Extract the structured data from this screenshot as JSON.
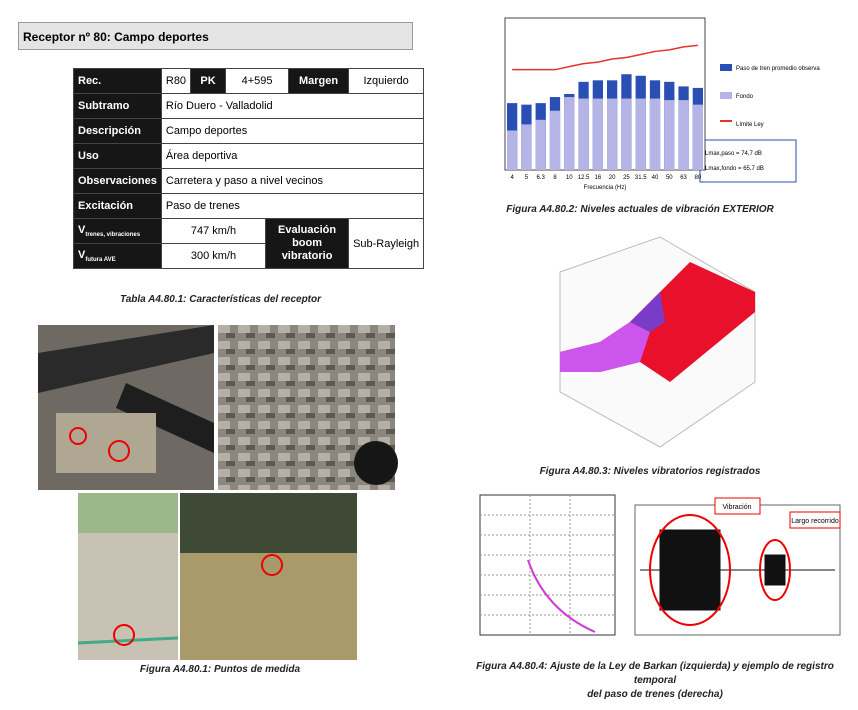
{
  "header": {
    "title": "Receptor nº 80: Campo deportes"
  },
  "table": {
    "row0": [
      "Rec.",
      "R80",
      "PK",
      "4+595",
      "Margen",
      "Izquierdo"
    ],
    "rows": [
      [
        "Subtramo",
        "Río Duero - Valladolid"
      ],
      [
        "Descripción",
        "Campo deportes"
      ],
      [
        "Uso",
        "Área deportiva"
      ],
      [
        "Observaciones",
        "Carretera y paso a nivel vecinos"
      ],
      [
        "Excitación",
        "Paso de trenes"
      ]
    ],
    "speed1": {
      "label": "V",
      "sub": "trenes, vibraciones",
      "value": "747 km/h"
    },
    "speed2": {
      "label": "V",
      "sub": "futura AVE",
      "value": "300 km/h"
    },
    "evaluation": {
      "label": "Evaluación boom vibratorio",
      "value": "Sub-Rayleigh"
    },
    "caption": "Tabla A4.80.1: Características del receptor"
  },
  "photos": {
    "caption": "Figura A4.80.1: Puntos de medida"
  },
  "figure2": {
    "caption": "Figura A4.80.2: Niveles actuales de vibración EXTERIOR",
    "chart_data": {
      "type": "bar",
      "x_label": "Frecuencia (Hz)",
      "categories": [
        "4",
        "5",
        "6.3",
        "8",
        "10",
        "12.5",
        "16",
        "20",
        "25",
        "31.5",
        "40",
        "50",
        "63",
        "80"
      ],
      "ylim": [
        0,
        10
      ],
      "series": [
        {
          "name": "Paso de tren promedio observado",
          "color": "#2a4fb4",
          "values": [
            4.4,
            4.3,
            4.4,
            4.8,
            5.0,
            5.8,
            5.9,
            5.9,
            6.3,
            6.2,
            5.9,
            5.8,
            5.5,
            5.4
          ]
        },
        {
          "name": "Fondo",
          "color": "#b4b4e6",
          "values": [
            2.6,
            3.0,
            3.3,
            3.9,
            4.8,
            4.7,
            4.7,
            4.7,
            4.7,
            4.7,
            4.7,
            4.6,
            4.6,
            4.3
          ]
        },
        {
          "name": "Límite Ley",
          "color": "#e8322a",
          "type": "line",
          "values": [
            6.6,
            6.6,
            6.6,
            6.6,
            6.8,
            7.0,
            7.1,
            7.3,
            7.4,
            7.6,
            7.8,
            7.9,
            8.1,
            8.2
          ]
        }
      ],
      "annotations": [
        "Lmax,paso = 74,7 dB",
        "Lmax,fondo = 65,7 dB"
      ]
    }
  },
  "figure3": {
    "caption": "Figura A4.80.3: Niveles vibratorios registrados"
  },
  "figure4": {
    "caption_lines": [
      "Figura A4.80.4: Ajuste de la Ley de Barkan (izquierda) y ejemplo de registro temporal",
      "del paso de trenes (derecha)"
    ],
    "labels": [
      "Vibración",
      "Largo recorrido"
    ]
  }
}
